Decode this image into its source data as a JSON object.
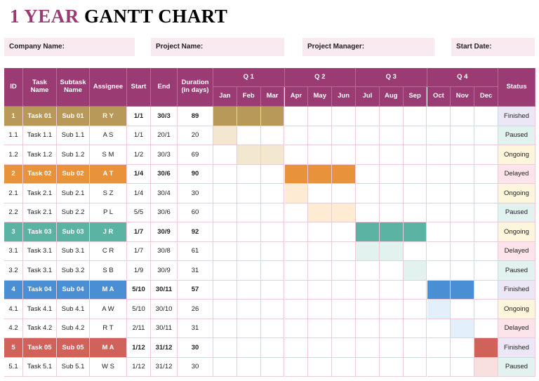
{
  "title": {
    "accent": "1 YEAR",
    "rest": "GANTT CHART"
  },
  "fields": [
    "Company Name:",
    "Project Name:",
    "Project Manager:",
    "Start Date:"
  ],
  "table": {
    "headers": [
      "ID",
      "Task Name",
      "Subtask Name",
      "Assignee",
      "Start",
      "End",
      "Duration (in days)",
      "Status"
    ],
    "quarters": [
      "Q 1",
      "Q 2",
      "Q 3",
      "Q 4"
    ],
    "months": [
      "Jan",
      "Feb",
      "Mar",
      "Apr",
      "May",
      "Jun",
      "Jul",
      "Aug",
      "Sep",
      "Oct",
      "Nov",
      "Dec"
    ],
    "rows": [
      [
        "1",
        "Task 01",
        "Sub 01",
        "R Y",
        "1/1",
        "30/3",
        89,
        "Finished"
      ],
      [
        "1.1",
        "Task 1.1",
        "Sub 1.1",
        "A S",
        "1/1",
        "20/1",
        20,
        "Paused"
      ],
      [
        "1.2",
        "Task 1.2",
        "Sub 1.2",
        "S M",
        "1/2",
        "30/3",
        69,
        "Ongoing"
      ],
      [
        "2",
        "Task 02",
        "Sub 02",
        "A T",
        "1/4",
        "30/6",
        90,
        "Delayed"
      ],
      [
        "2.1",
        "Task 2.1",
        "Sub 2.1",
        "S Z",
        "1/4",
        "30/4",
        30,
        "Ongoing"
      ],
      [
        "2.2",
        "Task 2.1",
        "Sub 2.2",
        "P L",
        "5/5",
        "30/6",
        60,
        "Paused"
      ],
      [
        "3",
        "Task 03",
        "Sub 03",
        "J R",
        "1/7",
        "30/9",
        92,
        "Ongoing"
      ],
      [
        "3.1",
        "Task 3.1",
        "Sub 3.1",
        "C R",
        "1/7",
        "30/8",
        61,
        "Delayed"
      ],
      [
        "3.2",
        "Task 3.1",
        "Sub 3.2",
        "S B",
        "1/9",
        "30/9",
        31,
        "Paused"
      ],
      [
        "4",
        "Task 04",
        "Sub 04",
        "M A",
        "5/10",
        "30/11",
        57,
        "Finished"
      ],
      [
        "4.1",
        "Task 4.1",
        "Sub 4.1",
        "A W",
        "5/10",
        "30/10",
        26,
        "Ongoing"
      ],
      [
        "4.2",
        "Task 4.2",
        "Sub 4.2",
        "R T",
        "2/11",
        "30/11",
        31,
        "Delayed"
      ],
      [
        "5",
        "Task 05",
        "Sub 05",
        "M A",
        "1/12",
        "31/12",
        30,
        "Finished"
      ],
      [
        "5.1",
        "Task 5.1",
        "Sub 5.1",
        "W S",
        "1/12",
        "31/12",
        30,
        "Paused"
      ]
    ]
  }
}
